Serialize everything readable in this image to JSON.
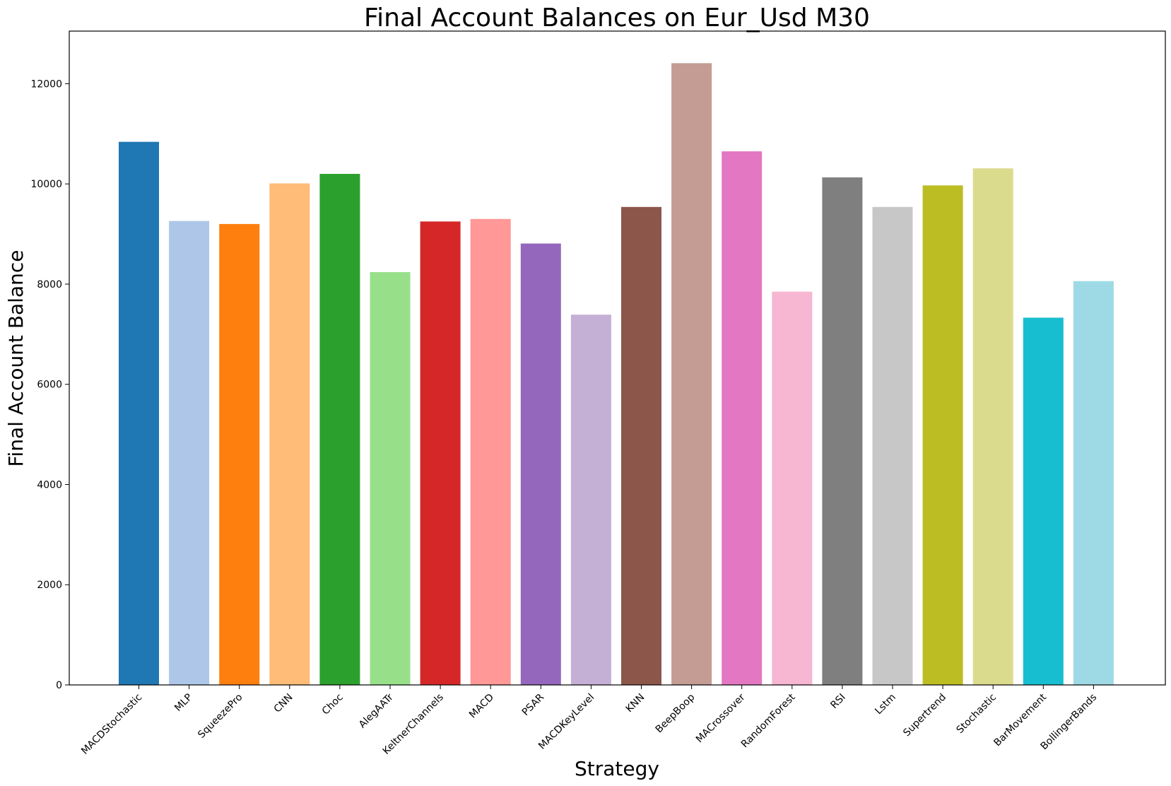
{
  "chart_data": {
    "type": "bar",
    "title": "Final Account Balances on Eur_Usd M30",
    "xlabel": "Strategy",
    "ylabel": "Final Account Balance",
    "ylim": [
      0,
      13050
    ],
    "yticks": [
      0,
      2000,
      4000,
      6000,
      8000,
      10000,
      12000
    ],
    "grid": false,
    "categories": [
      "MACDStochastic",
      "MLP",
      "SqueezePro",
      "CNN",
      "Choc",
      "AlegAATr",
      "KeltnerChannels",
      "MACD",
      "PSAR",
      "MACDKeyLevel",
      "KNN",
      "BeepBoop",
      "MACrossover",
      "RandomForest",
      "RSI",
      "Lstm",
      "Supertrend",
      "Stochastic",
      "BarMovement",
      "BollingerBands"
    ],
    "values": [
      10840,
      9260,
      9200,
      10010,
      10200,
      8240,
      9250,
      9300,
      8810,
      7390,
      9540,
      12410,
      10650,
      7850,
      10130,
      9540,
      9970,
      10310,
      7330,
      8060
    ],
    "colors": [
      "#1f77b4",
      "#aec7e8",
      "#ff7f0e",
      "#ffbb78",
      "#2ca02c",
      "#98df8a",
      "#d62728",
      "#ff9896",
      "#9467bd",
      "#c5b0d5",
      "#8c564b",
      "#c49c94",
      "#e377c2",
      "#f7b6d2",
      "#7f7f7f",
      "#c7c7c7",
      "#bcbd22",
      "#dbdb8d",
      "#17becf",
      "#9edae5"
    ]
  }
}
